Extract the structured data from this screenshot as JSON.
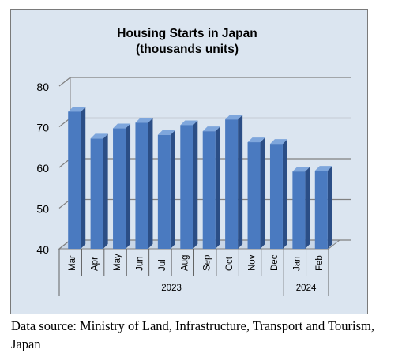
{
  "chart_data": {
    "type": "bar",
    "title": "Housing Starts in Japan",
    "subtitle": "(thousands units)",
    "categories": [
      "Mar",
      "Apr",
      "May",
      "Jun",
      "Jul",
      "Aug",
      "Sep",
      "Oct",
      "Nov",
      "Dec",
      "Jan",
      "Feb"
    ],
    "values": [
      73.7,
      67.1,
      69.6,
      71.0,
      68.0,
      70.4,
      68.9,
      71.8,
      66.2,
      65.8,
      59.0,
      59.2
    ],
    "groups": [
      {
        "label": "2023",
        "count": 10
      },
      {
        "label": "2024",
        "count": 2
      }
    ],
    "ylim": [
      40,
      80
    ],
    "yticks": [
      40,
      50,
      60,
      70,
      80
    ],
    "grid": true,
    "style": "3d-columns",
    "colors": {
      "bar_front": "#4a7ac0",
      "bar_side": "#2b4e86",
      "bar_top": "#7ea6dc",
      "plot_background": "#dbe5f0",
      "gridline": "#808080"
    }
  },
  "source_note": "Data source: Ministry of Land, Infrastructure, Transport and Tourism, Japan"
}
